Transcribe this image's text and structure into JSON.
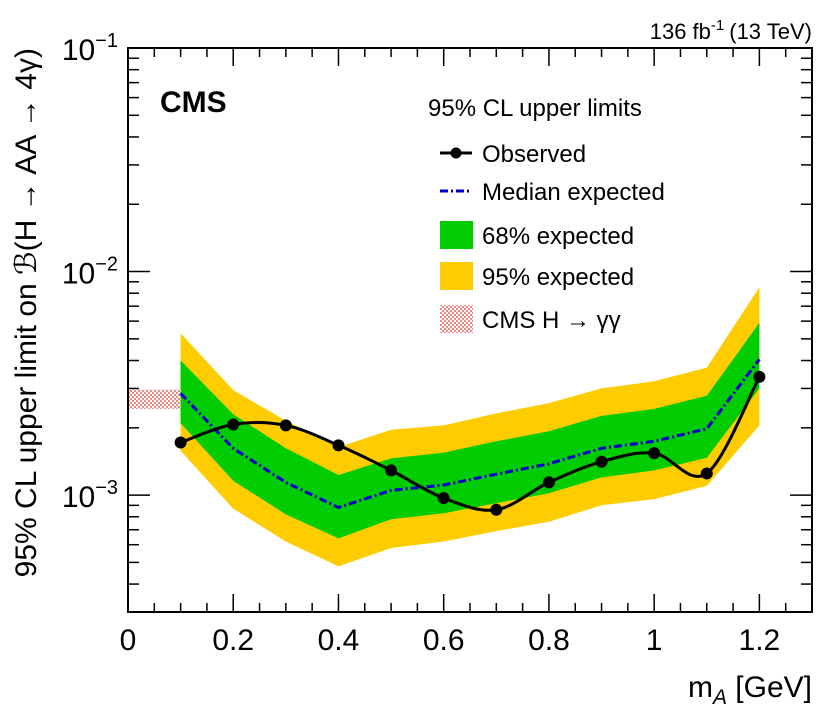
{
  "chart_data": {
    "type": "line",
    "lumi_label": "136 fb",
    "lumi_sup": "-1",
    "lumi_energy": "(13 TeV)",
    "experiment": "CMS",
    "xlabel_base": "m",
    "xlabel_sub": "A",
    "xlabel_unit": " [GeV]",
    "ylabel": "95% CL upper limit on ℬ(H → AA → 4γ)",
    "xlim": [
      0,
      1.3
    ],
    "ylim": [
      0.0003,
      0.1
    ],
    "yscale": "log",
    "x_ticks": [
      {
        "value": 0,
        "label": "0"
      },
      {
        "value": 0.2,
        "label": "0.2"
      },
      {
        "value": 0.4,
        "label": "0.4"
      },
      {
        "value": 0.6,
        "label": "0.6"
      },
      {
        "value": 0.8,
        "label": "0.8"
      },
      {
        "value": 1.0,
        "label": "1"
      },
      {
        "value": 1.2,
        "label": "1.2"
      }
    ],
    "y_ticks": [
      {
        "value": 0.001,
        "base": "10",
        "exp": "−3"
      },
      {
        "value": 0.01,
        "base": "10",
        "exp": "−2"
      },
      {
        "value": 0.1,
        "base": "10",
        "exp": "−1"
      }
    ],
    "legend_header": "95% CL upper limits",
    "legend": {
      "observed": "Observed",
      "median": "Median expected",
      "band68": "68% expected",
      "band95": "95% expected",
      "cms_hgg": "CMS H → γγ"
    },
    "colors": {
      "observed": "#000000",
      "median": "#0000cc",
      "band68": "#00cc00",
      "band95": "#ffcc00",
      "cms_hgg": "#e8312a"
    },
    "x": [
      0.1,
      0.2,
      0.3,
      0.4,
      0.5,
      0.6,
      0.7,
      0.8,
      0.9,
      1.0,
      1.1,
      1.2
    ],
    "series": [
      {
        "name": "Observed",
        "values": [
          0.00172,
          0.00207,
          0.00205,
          0.00167,
          0.00129,
          0.00097,
          0.00086,
          0.00114,
          0.00141,
          0.00154,
          0.00125,
          0.00338
        ]
      },
      {
        "name": "Median expected",
        "values": [
          0.00285,
          0.00162,
          0.00114,
          0.00088,
          0.00105,
          0.00111,
          0.00124,
          0.00138,
          0.00162,
          0.00174,
          0.00198,
          0.00405
        ]
      },
      {
        "name": "68% expected low",
        "values": [
          0.0021,
          0.00116,
          0.00082,
          0.00064,
          0.00078,
          0.00083,
          0.00092,
          0.00102,
          0.0012,
          0.00129,
          0.00147,
          0.003
        ]
      },
      {
        "name": "68% expected high",
        "values": [
          0.004,
          0.0023,
          0.00162,
          0.00123,
          0.00146,
          0.00155,
          0.00174,
          0.00193,
          0.00226,
          0.00243,
          0.00278,
          0.0059
        ]
      },
      {
        "name": "95% expected low",
        "values": [
          0.00158,
          0.00087,
          0.00062,
          0.00048,
          0.00058,
          0.00062,
          0.00069,
          0.00076,
          0.0009,
          0.00096,
          0.0011,
          0.00205
        ]
      },
      {
        "name": "95% expected high",
        "values": [
          0.0053,
          0.00295,
          0.00215,
          0.00164,
          0.00196,
          0.00205,
          0.00232,
          0.00258,
          0.003,
          0.00323,
          0.00372,
          0.0085
        ]
      }
    ],
    "cms_hgg_band": {
      "x_range": [
        0.0,
        0.1
      ],
      "y_range": [
        0.00243,
        0.00297
      ]
    }
  }
}
